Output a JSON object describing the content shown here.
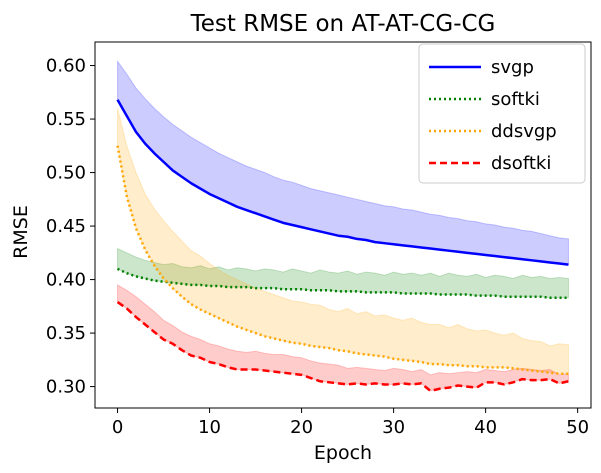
{
  "chart_data": {
    "type": "line",
    "title": "Test RMSE on AT-AT-CG-CG",
    "xlabel": "Epoch",
    "ylabel": "RMSE",
    "xlim": [
      -2.45,
      51.45
    ],
    "ylim": [
      0.28,
      0.622
    ],
    "xticks": [
      0,
      10,
      20,
      30,
      40,
      50
    ],
    "yticks": [
      0.3,
      0.35,
      0.4,
      0.45,
      0.5,
      0.55,
      0.6
    ],
    "ytick_labels": [
      "0.30",
      "0.35",
      "0.40",
      "0.45",
      "0.50",
      "0.55",
      "0.60"
    ],
    "legend_position": "top-right",
    "x": [
      0,
      1,
      2,
      3,
      4,
      5,
      6,
      7,
      8,
      9,
      10,
      11,
      12,
      13,
      14,
      15,
      16,
      17,
      18,
      19,
      20,
      21,
      22,
      23,
      24,
      25,
      26,
      27,
      28,
      29,
      30,
      31,
      32,
      33,
      34,
      35,
      36,
      37,
      38,
      39,
      40,
      41,
      42,
      43,
      44,
      45,
      46,
      47,
      48,
      49
    ],
    "series": [
      {
        "name": "svgp",
        "color": "#0000ff",
        "style": "solid",
        "values": [
          0.568,
          0.553,
          0.538,
          0.527,
          0.518,
          0.51,
          0.502,
          0.496,
          0.49,
          0.485,
          0.48,
          0.476,
          0.472,
          0.468,
          0.465,
          0.462,
          0.459,
          0.456,
          0.453,
          0.451,
          0.449,
          0.447,
          0.445,
          0.443,
          0.441,
          0.44,
          0.438,
          0.437,
          0.435,
          0.434,
          0.433,
          0.432,
          0.431,
          0.43,
          0.429,
          0.428,
          0.427,
          0.426,
          0.425,
          0.424,
          0.423,
          0.422,
          0.421,
          0.42,
          0.419,
          0.418,
          0.417,
          0.416,
          0.415,
          0.414
        ],
        "upper": [
          0.604,
          0.592,
          0.579,
          0.569,
          0.56,
          0.552,
          0.545,
          0.539,
          0.533,
          0.528,
          0.523,
          0.518,
          0.514,
          0.51,
          0.506,
          0.503,
          0.5,
          0.496,
          0.493,
          0.491,
          0.488,
          0.485,
          0.483,
          0.481,
          0.479,
          0.477,
          0.475,
          0.473,
          0.471,
          0.469,
          0.468,
          0.466,
          0.465,
          0.463,
          0.461,
          0.46,
          0.458,
          0.457,
          0.455,
          0.454,
          0.452,
          0.451,
          0.449,
          0.448,
          0.446,
          0.445,
          0.443,
          0.441,
          0.439,
          0.438
        ],
        "lower": [
          0.568,
          0.553,
          0.538,
          0.527,
          0.518,
          0.51,
          0.502,
          0.496,
          0.49,
          0.485,
          0.48,
          0.476,
          0.472,
          0.468,
          0.465,
          0.462,
          0.459,
          0.456,
          0.453,
          0.451,
          0.449,
          0.447,
          0.445,
          0.443,
          0.441,
          0.44,
          0.438,
          0.437,
          0.435,
          0.434,
          0.433,
          0.432,
          0.431,
          0.43,
          0.429,
          0.428,
          0.427,
          0.426,
          0.425,
          0.424,
          0.423,
          0.422,
          0.421,
          0.42,
          0.419,
          0.418,
          0.417,
          0.416,
          0.415,
          0.414
        ]
      },
      {
        "name": "softki",
        "color": "#008000",
        "style": "dotted",
        "values": [
          0.41,
          0.406,
          0.403,
          0.401,
          0.399,
          0.398,
          0.397,
          0.396,
          0.395,
          0.395,
          0.394,
          0.394,
          0.393,
          0.393,
          0.393,
          0.392,
          0.392,
          0.392,
          0.391,
          0.391,
          0.391,
          0.39,
          0.39,
          0.39,
          0.389,
          0.389,
          0.389,
          0.388,
          0.388,
          0.388,
          0.388,
          0.387,
          0.387,
          0.387,
          0.387,
          0.386,
          0.386,
          0.386,
          0.386,
          0.385,
          0.385,
          0.385,
          0.384,
          0.384,
          0.384,
          0.384,
          0.384,
          0.383,
          0.383,
          0.383
        ],
        "upper": [
          0.429,
          0.425,
          0.421,
          0.418,
          0.416,
          0.414,
          0.415,
          0.412,
          0.411,
          0.413,
          0.41,
          0.412,
          0.409,
          0.411,
          0.41,
          0.408,
          0.41,
          0.409,
          0.407,
          0.41,
          0.408,
          0.406,
          0.409,
          0.407,
          0.406,
          0.408,
          0.405,
          0.407,
          0.406,
          0.404,
          0.407,
          0.405,
          0.406,
          0.404,
          0.406,
          0.403,
          0.406,
          0.404,
          0.403,
          0.405,
          0.402,
          0.404,
          0.403,
          0.401,
          0.404,
          0.402,
          0.403,
          0.401,
          0.402,
          0.401
        ],
        "lower": [
          0.41,
          0.406,
          0.403,
          0.401,
          0.399,
          0.398,
          0.397,
          0.396,
          0.395,
          0.395,
          0.394,
          0.394,
          0.393,
          0.393,
          0.393,
          0.392,
          0.392,
          0.392,
          0.391,
          0.391,
          0.391,
          0.39,
          0.39,
          0.39,
          0.389,
          0.389,
          0.389,
          0.388,
          0.388,
          0.388,
          0.388,
          0.387,
          0.387,
          0.387,
          0.387,
          0.386,
          0.386,
          0.386,
          0.386,
          0.385,
          0.385,
          0.385,
          0.384,
          0.384,
          0.384,
          0.384,
          0.384,
          0.383,
          0.383,
          0.383
        ]
      },
      {
        "name": "ddsvgp",
        "color": "#ffa500",
        "style": "dotted",
        "values": [
          0.525,
          0.478,
          0.448,
          0.428,
          0.413,
          0.401,
          0.392,
          0.384,
          0.377,
          0.372,
          0.368,
          0.364,
          0.36,
          0.356,
          0.353,
          0.35,
          0.347,
          0.345,
          0.343,
          0.341,
          0.34,
          0.338,
          0.337,
          0.336,
          0.334,
          0.333,
          0.331,
          0.33,
          0.329,
          0.328,
          0.326,
          0.325,
          0.324,
          0.323,
          0.321,
          0.321,
          0.32,
          0.32,
          0.319,
          0.319,
          0.318,
          0.318,
          0.318,
          0.317,
          0.316,
          0.315,
          0.314,
          0.313,
          0.312,
          0.312
        ],
        "upper": [
          0.56,
          0.525,
          0.5,
          0.48,
          0.466,
          0.455,
          0.445,
          0.436,
          0.427,
          0.422,
          0.415,
          0.409,
          0.404,
          0.4,
          0.396,
          0.392,
          0.389,
          0.386,
          0.383,
          0.38,
          0.379,
          0.377,
          0.376,
          0.372,
          0.37,
          0.373,
          0.368,
          0.37,
          0.366,
          0.367,
          0.364,
          0.362,
          0.364,
          0.36,
          0.358,
          0.358,
          0.355,
          0.358,
          0.354,
          0.352,
          0.353,
          0.35,
          0.348,
          0.35,
          0.345,
          0.343,
          0.342,
          0.338,
          0.34,
          0.339
        ],
        "lower": [
          0.525,
          0.478,
          0.448,
          0.428,
          0.413,
          0.401,
          0.392,
          0.384,
          0.377,
          0.372,
          0.368,
          0.364,
          0.36,
          0.356,
          0.353,
          0.35,
          0.347,
          0.345,
          0.343,
          0.341,
          0.34,
          0.338,
          0.337,
          0.336,
          0.334,
          0.333,
          0.331,
          0.33,
          0.329,
          0.328,
          0.326,
          0.325,
          0.324,
          0.323,
          0.321,
          0.321,
          0.32,
          0.32,
          0.319,
          0.319,
          0.318,
          0.318,
          0.318,
          0.317,
          0.316,
          0.315,
          0.314,
          0.313,
          0.312,
          0.312
        ]
      },
      {
        "name": "dsoftki",
        "color": "#ff0000",
        "style": "dashed",
        "values": [
          0.379,
          0.373,
          0.365,
          0.358,
          0.351,
          0.344,
          0.34,
          0.334,
          0.329,
          0.327,
          0.323,
          0.321,
          0.318,
          0.316,
          0.316,
          0.316,
          0.315,
          0.314,
          0.313,
          0.312,
          0.311,
          0.308,
          0.305,
          0.304,
          0.303,
          0.302,
          0.303,
          0.302,
          0.303,
          0.302,
          0.302,
          0.303,
          0.302,
          0.303,
          0.296,
          0.298,
          0.299,
          0.301,
          0.3,
          0.299,
          0.304,
          0.304,
          0.302,
          0.304,
          0.307,
          0.306,
          0.306,
          0.307,
          0.303,
          0.305
        ],
        "upper": [
          0.395,
          0.39,
          0.384,
          0.377,
          0.37,
          0.362,
          0.357,
          0.351,
          0.347,
          0.344,
          0.34,
          0.338,
          0.335,
          0.333,
          0.332,
          0.333,
          0.331,
          0.33,
          0.33,
          0.328,
          0.327,
          0.324,
          0.322,
          0.321,
          0.32,
          0.317,
          0.318,
          0.317,
          0.316,
          0.315,
          0.317,
          0.316,
          0.314,
          0.316,
          0.311,
          0.313,
          0.312,
          0.313,
          0.314,
          0.313,
          0.316,
          0.315,
          0.314,
          0.316,
          0.317,
          0.316,
          0.315,
          0.316,
          0.311,
          0.312
        ],
        "lower": [
          0.379,
          0.373,
          0.365,
          0.358,
          0.351,
          0.344,
          0.34,
          0.334,
          0.329,
          0.327,
          0.323,
          0.321,
          0.318,
          0.316,
          0.316,
          0.316,
          0.315,
          0.314,
          0.313,
          0.312,
          0.311,
          0.308,
          0.305,
          0.304,
          0.303,
          0.302,
          0.303,
          0.302,
          0.303,
          0.302,
          0.302,
          0.303,
          0.302,
          0.303,
          0.296,
          0.298,
          0.299,
          0.301,
          0.3,
          0.299,
          0.304,
          0.304,
          0.302,
          0.304,
          0.307,
          0.306,
          0.306,
          0.307,
          0.303,
          0.305
        ]
      }
    ]
  }
}
